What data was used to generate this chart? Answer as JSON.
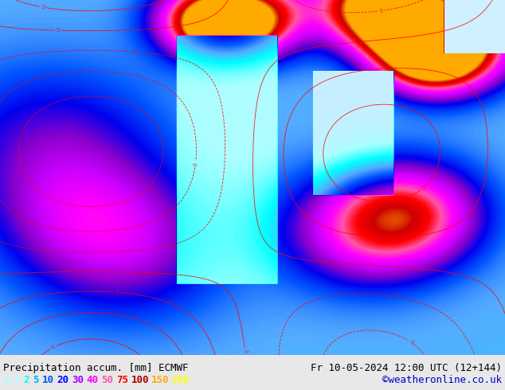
{
  "title_left": "Precipitation accum. [mm] ECMWF",
  "title_right": "Fr 10-05-2024 12:00 UTC (12+144)",
  "credit": "©weatheronline.co.uk",
  "legend_values": [
    "0.5",
    "2",
    "5",
    "10",
    "20",
    "30",
    "40",
    "50",
    "75",
    "100",
    "150",
    "200"
  ],
  "legend_colors": [
    "#aaffff",
    "#00ffff",
    "#00aaff",
    "#0055ff",
    "#0000ff",
    "#aa00ff",
    "#ff00ff",
    "#ff55aa",
    "#ff0000",
    "#aa0000",
    "#ffaa00",
    "#ffff00"
  ],
  "bg_color": "#e8e8e8",
  "map_bg": "#cccccc",
  "bottom_bar_color": "#ffffff",
  "title_fontsize": 9,
  "legend_fontsize": 9,
  "credit_color": "#0000cc",
  "title_color": "#000000"
}
